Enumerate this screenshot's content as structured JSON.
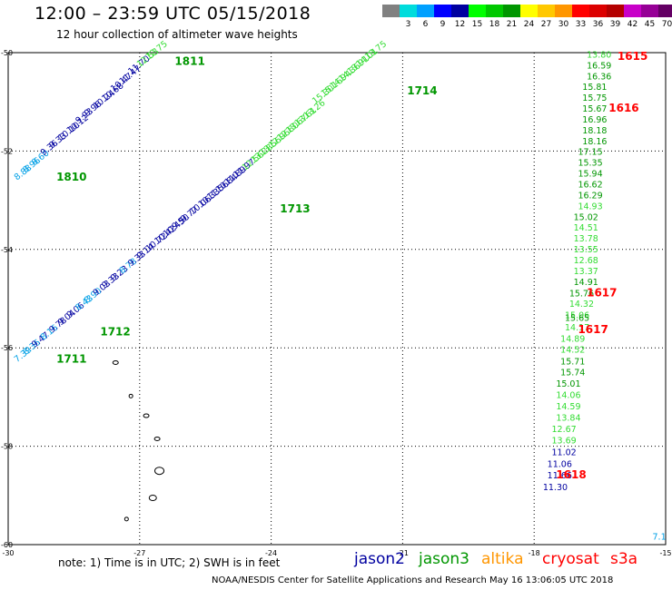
{
  "title": "12:00 – 23:59 UTC 05/15/2018",
  "subtitle": "12 hour collection of altimeter wave heights",
  "colorbar": {
    "unit": "(ft)",
    "bins": [
      {
        "label": "",
        "color": "#808080"
      },
      {
        "label": "3",
        "color": "#00dcdc"
      },
      {
        "label": "6",
        "color": "#00a0ff"
      },
      {
        "label": "9",
        "color": "#0000ff"
      },
      {
        "label": "12",
        "color": "#0000a0"
      },
      {
        "label": "15",
        "color": "#00ff00"
      },
      {
        "label": "18",
        "color": "#00c800"
      },
      {
        "label": "21",
        "color": "#009600"
      },
      {
        "label": "24",
        "color": "#ffff00"
      },
      {
        "label": "27",
        "color": "#ffc800"
      },
      {
        "label": "30",
        "color": "#ff9600"
      },
      {
        "label": "33",
        "color": "#ff0000"
      },
      {
        "label": "36",
        "color": "#dc0000"
      },
      {
        "label": "39",
        "color": "#b40000"
      },
      {
        "label": "42",
        "color": "#c800c8"
      },
      {
        "label": "45",
        "color": "#960096"
      },
      {
        "label": "70",
        "color": "#640064"
      }
    ]
  },
  "axes": {
    "lon_min": -30,
    "lon_max": -15,
    "lat_min": -60,
    "lat_max": -50,
    "xticks": [
      -30,
      -27,
      -24,
      -21,
      -18,
      -15
    ],
    "yticks": [
      -50,
      -52,
      -54,
      -56,
      -58,
      -60
    ]
  },
  "colors": {
    "jason2": "#0000a0",
    "jason2_light": "#00a0e6",
    "jason3": "#009600",
    "jason3_light": "#32dc32",
    "altika": "#ff9600",
    "cryosat": "#ff0000",
    "s3a": "#ff0000"
  },
  "tracks": [
    {
      "id": "1810",
      "label_lon": -28.9,
      "label_lat": -52.6,
      "color": "jason3"
    },
    {
      "id": "1811",
      "label_lon": -26.2,
      "label_lat": -50.25,
      "color": "jason3"
    },
    {
      "id": "1711",
      "label_lon": -28.9,
      "label_lat": -56.3,
      "color": "jason3"
    },
    {
      "id": "1712",
      "label_lon": -27.9,
      "label_lat": -55.75,
      "color": "jason3"
    },
    {
      "id": "1713",
      "label_lon": -23.8,
      "label_lat": -53.25,
      "color": "jason3"
    },
    {
      "id": "1714",
      "label_lon": -20.9,
      "label_lat": -50.85,
      "color": "jason3"
    },
    {
      "id": "1615",
      "label_lon": -16.1,
      "label_lat": -50.15,
      "color": "cryosat"
    },
    {
      "id": "1616",
      "label_lon": -16.3,
      "label_lat": -51.2,
      "color": "cryosat"
    },
    {
      "id": "1617",
      "label_lon": -16.8,
      "label_lat": -54.95,
      "color": "cryosat"
    },
    {
      "id": "1617",
      "label_lon": -17.0,
      "label_lat": -55.7,
      "color": "cryosat"
    },
    {
      "id": "1618",
      "label_lon": -17.5,
      "label_lat": -58.65,
      "color": "cryosat"
    }
  ],
  "obs": [
    {
      "v": "8.88",
      "lon": -29.8,
      "lat": -52.6,
      "c": "jason2_light"
    },
    {
      "v": "8.96",
      "lon": -29.6,
      "lat": -52.45,
      "c": "jason2_light"
    },
    {
      "v": "8.60",
      "lon": -29.4,
      "lat": -52.3,
      "c": "jason2_light"
    },
    {
      "v": "9.36",
      "lon": -29.2,
      "lat": -52.1,
      "c": "jason2"
    },
    {
      "v": "9.33",
      "lon": -29.0,
      "lat": -51.95,
      "c": "jason2"
    },
    {
      "v": "10.10",
      "lon": -28.8,
      "lat": -51.8,
      "c": "jason2"
    },
    {
      "v": "10.12",
      "lon": -28.6,
      "lat": -51.65,
      "c": "jason2"
    },
    {
      "v": "9.93",
      "lon": -28.4,
      "lat": -51.45,
      "c": "jason2"
    },
    {
      "v": "9.96",
      "lon": -28.2,
      "lat": -51.3,
      "c": "jason2"
    },
    {
      "v": "10.24",
      "lon": -28.0,
      "lat": -51.15,
      "c": "jason2"
    },
    {
      "v": "10.68",
      "lon": -27.8,
      "lat": -51.0,
      "c": "jason2"
    },
    {
      "v": "10.47",
      "lon": -27.6,
      "lat": -50.8,
      "c": "jason2"
    },
    {
      "v": "11.47",
      "lon": -27.4,
      "lat": -50.65,
      "c": "jason2"
    },
    {
      "v": "11.70",
      "lon": -27.2,
      "lat": -50.45,
      "c": "jason2"
    },
    {
      "v": "12.53",
      "lon": -27.0,
      "lat": -50.3,
      "c": "jason3_light"
    },
    {
      "v": "12.75",
      "lon": -26.8,
      "lat": -50.15,
      "c": "jason3_light"
    },
    {
      "v": "7.39",
      "lon": -29.8,
      "lat": -56.3,
      "c": "jason2_light"
    },
    {
      "v": "8.36",
      "lon": -29.6,
      "lat": -56.15,
      "c": "jason2_light"
    },
    {
      "v": "9.47",
      "lon": -29.4,
      "lat": -56.0,
      "c": "jason2"
    },
    {
      "v": "8.16",
      "lon": -29.2,
      "lat": -55.85,
      "c": "jason2_light"
    },
    {
      "v": "9.78",
      "lon": -29.0,
      "lat": -55.7,
      "c": "jason2"
    },
    {
      "v": "9.04",
      "lon": -28.8,
      "lat": -55.55,
      "c": "jason2"
    },
    {
      "v": "9.06",
      "lon": -28.6,
      "lat": -55.4,
      "c": "jason2"
    },
    {
      "v": "8.43",
      "lon": -28.4,
      "lat": -55.25,
      "c": "jason2_light"
    },
    {
      "v": "8.90",
      "lon": -28.2,
      "lat": -55.1,
      "c": "jason2_light"
    },
    {
      "v": "9.03",
      "lon": -28.0,
      "lat": -54.95,
      "c": "jason2"
    },
    {
      "v": "9.33",
      "lon": -27.8,
      "lat": -54.8,
      "c": "jason2"
    },
    {
      "v": "9.23",
      "lon": -27.6,
      "lat": -54.65,
      "c": "jason2"
    },
    {
      "v": "8.78",
      "lon": -27.4,
      "lat": -54.5,
      "c": "jason2_light"
    },
    {
      "v": "9.33",
      "lon": -27.2,
      "lat": -54.35,
      "c": "jason2"
    },
    {
      "v": "9.14",
      "lon": -27.0,
      "lat": -54.2,
      "c": "jason2"
    },
    {
      "v": "10.72",
      "lon": -26.8,
      "lat": -54.05,
      "c": "jason2"
    },
    {
      "v": "10.42",
      "lon": -26.6,
      "lat": -53.9,
      "c": "jason2"
    },
    {
      "v": "10.45",
      "lon": -26.4,
      "lat": -53.75,
      "c": "jason2"
    },
    {
      "v": "9.50",
      "lon": -26.2,
      "lat": -53.6,
      "c": "jason2"
    },
    {
      "v": "9.77",
      "lon": -26.0,
      "lat": -53.45,
      "c": "jason2"
    },
    {
      "v": "10.06",
      "lon": -25.8,
      "lat": -53.3,
      "c": "jason2"
    },
    {
      "v": "10.33",
      "lon": -25.6,
      "lat": -53.15,
      "c": "jason2"
    },
    {
      "v": "11.56",
      "lon": -25.4,
      "lat": -53.0,
      "c": "jason2"
    },
    {
      "v": "10.84",
      "lon": -25.2,
      "lat": -52.85,
      "c": "jason2"
    },
    {
      "v": "11.89",
      "lon": -25.0,
      "lat": -52.7,
      "c": "jason2"
    },
    {
      "v": "11.97",
      "lon": -24.8,
      "lat": -52.55,
      "c": "jason2"
    },
    {
      "v": "12.56",
      "lon": -24.6,
      "lat": -52.4,
      "c": "jason3_light"
    },
    {
      "v": "13.28",
      "lon": -24.4,
      "lat": -52.25,
      "c": "jason3_light"
    },
    {
      "v": "13.56",
      "lon": -24.2,
      "lat": -52.1,
      "c": "jason3_light"
    },
    {
      "v": "12.96",
      "lon": -24.0,
      "lat": -51.95,
      "c": "jason3_light"
    },
    {
      "v": "12.80",
      "lon": -23.8,
      "lat": -51.8,
      "c": "jason3_light"
    },
    {
      "v": "13.67",
      "lon": -23.6,
      "lat": -51.65,
      "c": "jason3_light"
    },
    {
      "v": "13.61",
      "lon": -23.4,
      "lat": -51.5,
      "c": "jason3_light"
    },
    {
      "v": "13.26",
      "lon": -23.2,
      "lat": -51.35,
      "c": "jason3_light"
    },
    {
      "v": "15.30",
      "lon": -23.0,
      "lat": -51.05,
      "c": "jason3_light"
    },
    {
      "v": "15.16",
      "lon": -22.8,
      "lat": -50.9,
      "c": "jason3_light"
    },
    {
      "v": "14.94",
      "lon": -22.6,
      "lat": -50.75,
      "c": "jason3_light"
    },
    {
      "v": "14.36",
      "lon": -22.4,
      "lat": -50.6,
      "c": "jason3_light"
    },
    {
      "v": "13.91",
      "lon": -22.2,
      "lat": -50.45,
      "c": "jason3_light"
    },
    {
      "v": "14.01",
      "lon": -22.0,
      "lat": -50.3,
      "c": "jason3_light"
    },
    {
      "v": "13.75",
      "lon": -21.8,
      "lat": -50.15,
      "c": "jason3_light"
    },
    {
      "v": "13.80",
      "lon": -16.8,
      "lat": -50.1,
      "c": "jason3_light"
    },
    {
      "v": "16.59",
      "lon": -16.8,
      "lat": -50.32,
      "c": "jason3"
    },
    {
      "v": "16.36",
      "lon": -16.8,
      "lat": -50.54,
      "c": "jason3"
    },
    {
      "v": "15.81",
      "lon": -16.9,
      "lat": -50.76,
      "c": "jason3"
    },
    {
      "v": "15.75",
      "lon": -16.9,
      "lat": -50.98,
      "c": "jason3"
    },
    {
      "v": "15.67",
      "lon": -16.9,
      "lat": -51.2,
      "c": "jason3"
    },
    {
      "v": "16.96",
      "lon": -16.9,
      "lat": -51.42,
      "c": "jason3"
    },
    {
      "v": "18.18",
      "lon": -16.9,
      "lat": -51.64,
      "c": "jason3"
    },
    {
      "v": "18.16",
      "lon": -16.9,
      "lat": -51.86,
      "c": "jason3"
    },
    {
      "v": "17.15",
      "lon": -17.0,
      "lat": -52.08,
      "c": "jason3"
    },
    {
      "v": "15.35",
      "lon": -17.0,
      "lat": -52.3,
      "c": "jason3"
    },
    {
      "v": "15.94",
      "lon": -17.0,
      "lat": -52.52,
      "c": "jason3"
    },
    {
      "v": "16.62",
      "lon": -17.0,
      "lat": -52.74,
      "c": "jason3"
    },
    {
      "v": "16.29",
      "lon": -17.0,
      "lat": -52.96,
      "c": "jason3"
    },
    {
      "v": "14.93",
      "lon": -17.0,
      "lat": -53.18,
      "c": "jason3_light"
    },
    {
      "v": "15.02",
      "lon": -17.1,
      "lat": -53.4,
      "c": "jason3"
    },
    {
      "v": "14.51",
      "lon": -17.1,
      "lat": -53.62,
      "c": "jason3_light"
    },
    {
      "v": "13.78",
      "lon": -17.1,
      "lat": -53.84,
      "c": "jason3_light"
    },
    {
      "v": "13.55",
      "lon": -17.1,
      "lat": -54.06,
      "c": "jason3_light"
    },
    {
      "v": "12.68",
      "lon": -17.1,
      "lat": -54.28,
      "c": "jason3_light"
    },
    {
      "v": "13.37",
      "lon": -17.1,
      "lat": -54.5,
      "c": "jason3_light"
    },
    {
      "v": "14.91",
      "lon": -17.1,
      "lat": -54.72,
      "c": "jason3"
    },
    {
      "v": "15.76",
      "lon": -17.2,
      "lat": -54.95,
      "c": "jason3"
    },
    {
      "v": "14.32",
      "lon": -17.2,
      "lat": -55.17,
      "c": "jason3_light"
    },
    {
      "v": "15.06",
      "lon": -17.3,
      "lat": -55.4,
      "c": "jason3_light"
    },
    {
      "v": "15.65",
      "lon": -17.3,
      "lat": -55.45,
      "c": "jason3"
    },
    {
      "v": "14.17",
      "lon": -17.3,
      "lat": -55.65,
      "c": "jason3_light"
    },
    {
      "v": "14.89",
      "lon": -17.4,
      "lat": -55.88,
      "c": "jason3_light"
    },
    {
      "v": "14.52",
      "lon": -17.4,
      "lat": -56.1,
      "c": "jason3_light"
    },
    {
      "v": "15.71",
      "lon": -17.4,
      "lat": -56.34,
      "c": "jason3"
    },
    {
      "v": "15.74",
      "lon": -17.4,
      "lat": -56.56,
      "c": "jason3"
    },
    {
      "v": "15.01",
      "lon": -17.5,
      "lat": -56.79,
      "c": "jason3"
    },
    {
      "v": "14.06",
      "lon": -17.5,
      "lat": -57.02,
      "c": "jason3_light"
    },
    {
      "v": "14.59",
      "lon": -17.5,
      "lat": -57.25,
      "c": "jason3_light"
    },
    {
      "v": "13.84",
      "lon": -17.5,
      "lat": -57.48,
      "c": "jason3_light"
    },
    {
      "v": "12.67",
      "lon": -17.6,
      "lat": -57.71,
      "c": "jason3_light"
    },
    {
      "v": "13.69",
      "lon": -17.6,
      "lat": -57.94,
      "c": "jason3_light"
    },
    {
      "v": "11.02",
      "lon": -17.6,
      "lat": -58.18,
      "c": "jason2"
    },
    {
      "v": "11.06",
      "lon": -17.7,
      "lat": -58.42,
      "c": "jason2"
    },
    {
      "v": "11.66",
      "lon": -17.7,
      "lat": -58.65,
      "c": "jason2"
    },
    {
      "v": "11.30",
      "lon": -17.8,
      "lat": -58.89,
      "c": "jason2"
    },
    {
      "v": "7.1",
      "lon": -15.3,
      "lat": -59.9,
      "c": "jason2_light"
    }
  ],
  "note": "note:  1) Time is in UTC;  2) SWH is in feet",
  "satellites": [
    {
      "name": "jason2",
      "color": "#0000a0"
    },
    {
      "name": "jason3",
      "color": "#009600"
    },
    {
      "name": "altika",
      "color": "#ff9600"
    },
    {
      "name": "cryosat",
      "color": "#ff0000"
    },
    {
      "name": "s3a",
      "color": "#ff0000"
    }
  ],
  "credit": "NOAA/NESDIS Center for Satellite Applications and Research      May 16 13:06:05 UTC 2018"
}
